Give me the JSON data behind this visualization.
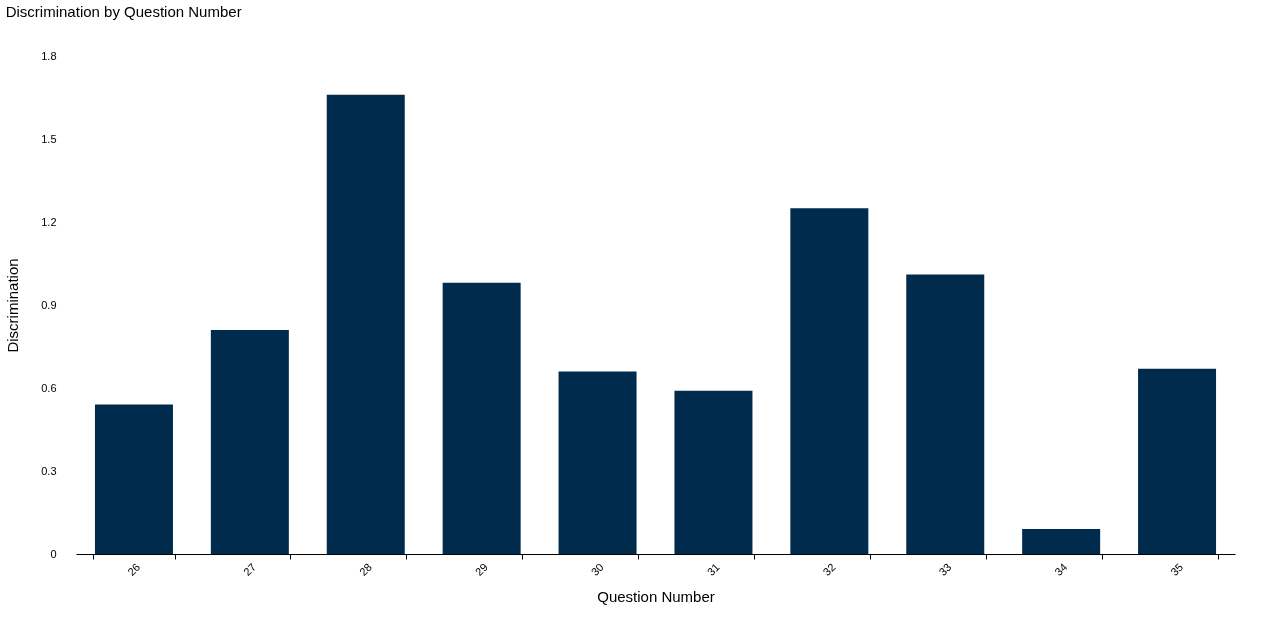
{
  "chart_data": {
    "type": "bar",
    "title": "Discrimination by Question Number",
    "xlabel": "Question Number",
    "ylabel": "Discrimination",
    "categories": [
      "26",
      "27",
      "28",
      "29",
      "30",
      "31",
      "32",
      "33",
      "34",
      "35"
    ],
    "values": [
      0.54,
      0.81,
      1.66,
      0.98,
      0.66,
      0.59,
      1.25,
      1.01,
      0.09,
      0.67
    ],
    "color": "#002b4d",
    "ylim": [
      0,
      1.8
    ],
    "yticks": [
      0,
      0.3,
      0.6,
      0.9,
      1.2,
      1.5,
      1.8
    ],
    "grid": false
  }
}
